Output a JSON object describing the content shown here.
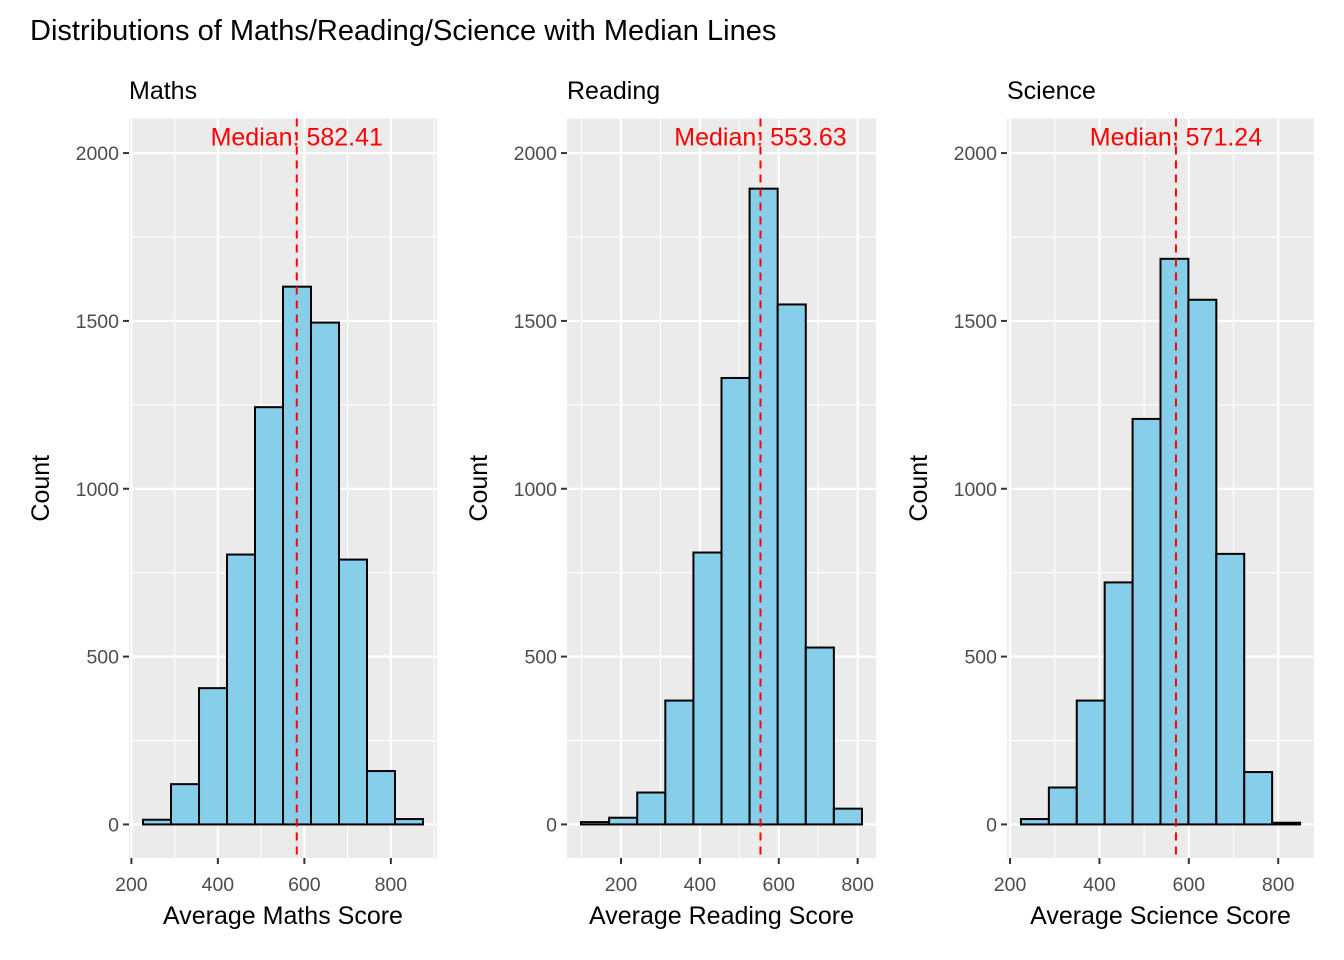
{
  "chart_data": {
    "title": "Distributions of Maths/Reading/Science with Median Lines",
    "type": "histogram-panels",
    "colors": {
      "bar_fill": "#87ceeb",
      "bar_stroke": "#000000",
      "median_line": "#ff0000",
      "panel_background": "#ebebeb",
      "grid": "#ffffff",
      "tick_text": "#4d4d4d"
    },
    "panels": [
      {
        "id": "maths",
        "title": "Maths",
        "type": "bar",
        "xlabel": "Average Maths Score",
        "ylabel": "Count",
        "xlim": [
          194.5,
          906.7
        ],
        "ylim": [
          -100,
          2103
        ],
        "xticks": [
          200,
          400,
          600,
          800
        ],
        "yticks": [
          0,
          500,
          1000,
          1500,
          2000
        ],
        "grid": true,
        "bin_start": 226.9,
        "bin_width": 64.74,
        "counts": [
          14,
          120,
          406,
          804,
          1243,
          1602,
          1495,
          789,
          159,
          16
        ],
        "median": 582.41,
        "median_label": "Median: 582.41",
        "median_label_y": 2050
      },
      {
        "id": "reading",
        "title": "Reading",
        "type": "bar",
        "xlabel": "Average Reading Score",
        "ylabel": "Count",
        "xlim": [
          63.1,
          846.5
        ],
        "ylim": [
          -100,
          2103
        ],
        "xticks": [
          200,
          400,
          600,
          800
        ],
        "yticks": [
          0,
          500,
          1000,
          1500,
          2000
        ],
        "grid": true,
        "bin_start": 98.7,
        "bin_width": 71.22,
        "counts": [
          7,
          20,
          95,
          369,
          810,
          1330,
          1894,
          1549,
          527,
          47
        ],
        "median": 553.63,
        "median_label": "Median: 553.63",
        "median_label_y": 2050
      },
      {
        "id": "science",
        "title": "Science",
        "type": "bar",
        "xlabel": "Average Science Score",
        "ylabel": "Count",
        "xlim": [
          193.2,
          880.1
        ],
        "ylim": [
          -100,
          2103
        ],
        "xticks": [
          200,
          400,
          600,
          800
        ],
        "yticks": [
          0,
          500,
          1000,
          1500,
          2000
        ],
        "grid": true,
        "bin_start": 224.4,
        "bin_width": 62.45,
        "counts": [
          16,
          110,
          369,
          721,
          1208,
          1685,
          1563,
          806,
          156,
          5
        ],
        "median": 571.24,
        "median_label": "Median: 571.24",
        "median_label_y": 2050
      }
    ]
  }
}
